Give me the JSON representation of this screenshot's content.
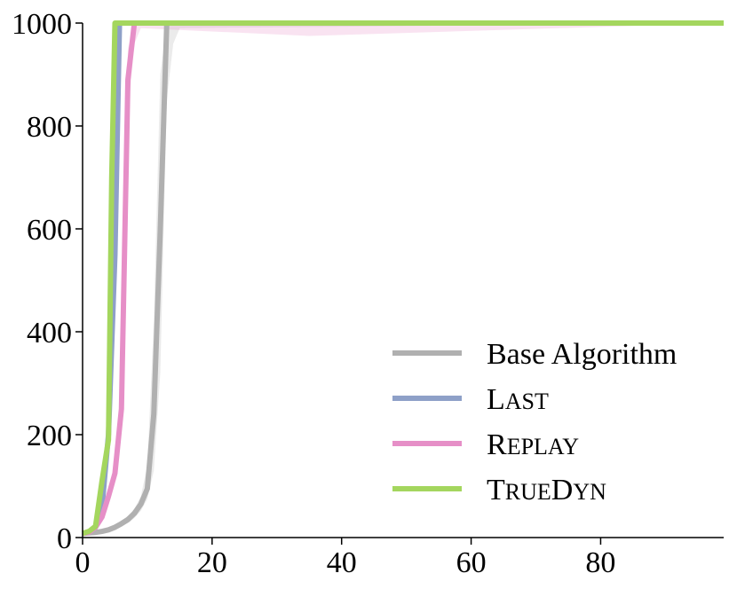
{
  "chart_data": {
    "type": "line",
    "title": "",
    "xlabel": "",
    "ylabel": "",
    "xlim": [
      0,
      99
    ],
    "ylim": [
      0,
      1000
    ],
    "grid": false,
    "legend_position": "lower-right",
    "x_ticks": [
      {
        "value": 0,
        "label": "0"
      },
      {
        "value": 20,
        "label": "20"
      },
      {
        "value": 40,
        "label": "40"
      },
      {
        "value": 60,
        "label": "60"
      },
      {
        "value": 80,
        "label": "80"
      }
    ],
    "y_ticks": [
      {
        "value": 0,
        "label": "0"
      },
      {
        "value": 200,
        "label": "200"
      },
      {
        "value": 400,
        "label": "400"
      },
      {
        "value": 600,
        "label": "600"
      },
      {
        "value": 800,
        "label": "800"
      },
      {
        "value": 1000,
        "label": "1000"
      }
    ],
    "series": [
      {
        "name": "Base Algorithm",
        "name_parts": [
          {
            "text": "Base Algorithm",
            "smallcaps": false
          }
        ],
        "color": "#b0b0b0",
        "x": [
          0,
          1,
          2,
          3,
          4,
          5,
          6,
          7,
          8,
          9,
          10,
          11,
          12,
          13,
          14,
          15,
          99
        ],
        "y": [
          8,
          9,
          10,
          12,
          15,
          20,
          27,
          35,
          47,
          65,
          95,
          240,
          600,
          1000,
          1000,
          1000,
          1000
        ],
        "band_upper": [
          10,
          11,
          12,
          15,
          18,
          24,
          32,
          42,
          56,
          80,
          140,
          420,
          900,
          1000,
          1000,
          1000,
          1000
        ],
        "band_lower": [
          6,
          7,
          8,
          9,
          12,
          16,
          22,
          28,
          38,
          52,
          75,
          130,
          320,
          850,
          960,
          990,
          1000
        ]
      },
      {
        "name": "LAST",
        "name_parts": [
          {
            "text": "L",
            "smallcaps": false
          },
          {
            "text": "AST",
            "smallcaps": true
          }
        ],
        "color": "#8ea0c8",
        "x": [
          0,
          1,
          2,
          3,
          4,
          5,
          5.7,
          6,
          99
        ],
        "y": [
          8,
          10,
          20,
          60,
          200,
          550,
          1000,
          1000,
          1000
        ]
      },
      {
        "name": "REPLAY",
        "name_parts": [
          {
            "text": "R",
            "smallcaps": false
          },
          {
            "text": "EPLAY",
            "smallcaps": true
          }
        ],
        "color": "#e68fc7",
        "x": [
          0,
          1,
          2,
          3,
          4,
          5,
          6,
          7,
          8,
          9,
          35,
          99
        ],
        "y": [
          8,
          10,
          20,
          40,
          80,
          125,
          250,
          890,
          1000,
          1000,
          1000,
          1000
        ],
        "band_upper": [
          10,
          12,
          24,
          46,
          90,
          140,
          300,
          950,
          1000,
          1000,
          1000,
          1000
        ],
        "band_lower": [
          6,
          8,
          16,
          34,
          70,
          110,
          210,
          820,
          960,
          990,
          975,
          1000
        ]
      },
      {
        "name": "TRUEDYN",
        "name_parts": [
          {
            "text": "T",
            "smallcaps": false
          },
          {
            "text": "RUE",
            "smallcaps": true
          },
          {
            "text": "D",
            "smallcaps": false
          },
          {
            "text": "YN",
            "smallcaps": true
          }
        ],
        "color": "#a4d65e",
        "x": [
          0,
          1,
          2,
          3,
          4,
          4.5,
          5,
          99
        ],
        "y": [
          8,
          12,
          22,
          110,
          190,
          700,
          1000,
          1000
        ]
      }
    ]
  }
}
